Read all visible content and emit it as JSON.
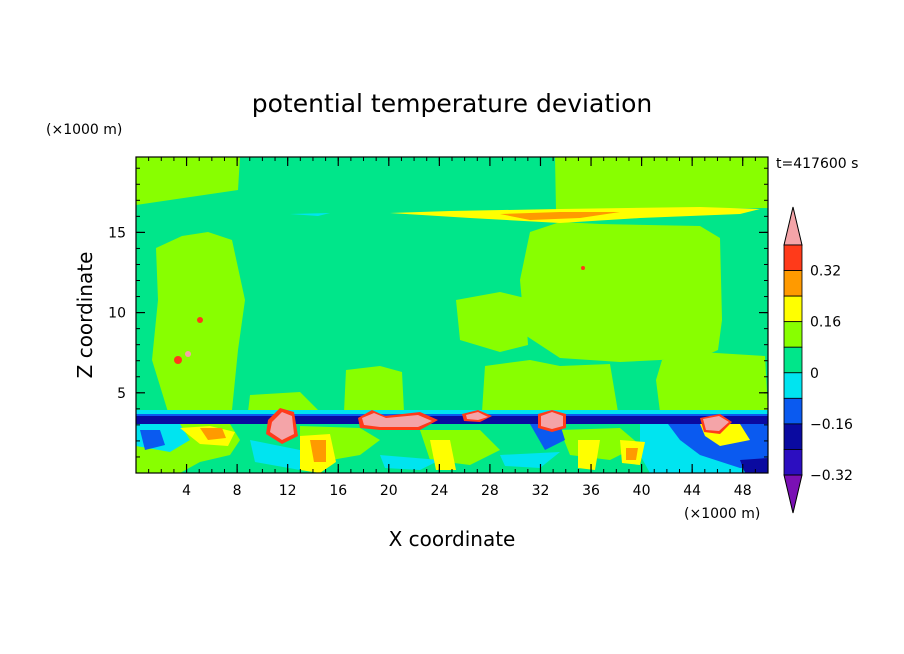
{
  "chart_data": {
    "type": "heatmap",
    "title": "potential temperature deviation",
    "time_label": "t=417600 s",
    "xlabel": "X coordinate",
    "ylabel": "Z coordinate",
    "x_unit": "(×1000 m)",
    "y_unit": "(×1000 m)",
    "xlim": [
      0,
      50
    ],
    "ylim": [
      0,
      19.7
    ],
    "x_ticks": [
      4,
      8,
      12,
      16,
      20,
      24,
      28,
      32,
      36,
      40,
      44,
      48
    ],
    "y_ticks": [
      5,
      10,
      15
    ],
    "colorbar": {
      "levels": [
        -0.4,
        -0.32,
        -0.24,
        -0.16,
        -0.08,
        0,
        0.08,
        0.16,
        0.24,
        0.32,
        0.4
      ],
      "labels": [
        "0.32",
        "0.16",
        "0",
        "−0.16",
        "−0.32"
      ],
      "label_values": [
        0.32,
        0.16,
        0,
        -0.16,
        -0.32
      ],
      "colors": [
        "#7a10b4",
        "#2c0ec0",
        "#0a0aa0",
        "#0a5af0",
        "#00e4f0",
        "#00e68a",
        "#88ff00",
        "#ffff00",
        "#ff9a00",
        "#ff3a1a",
        "#f4a4a8"
      ],
      "extend": "both"
    },
    "field_description_regions": [
      {
        "x": [
          0,
          50
        ],
        "z": [
          0,
          3.8
        ],
        "range": [
          -0.4,
          0.4
        ]
      },
      {
        "x": [
          0,
          50
        ],
        "z": [
          3.8,
          19.7
        ],
        "range": [
          -0.05,
          0.05
        ]
      }
    ]
  }
}
